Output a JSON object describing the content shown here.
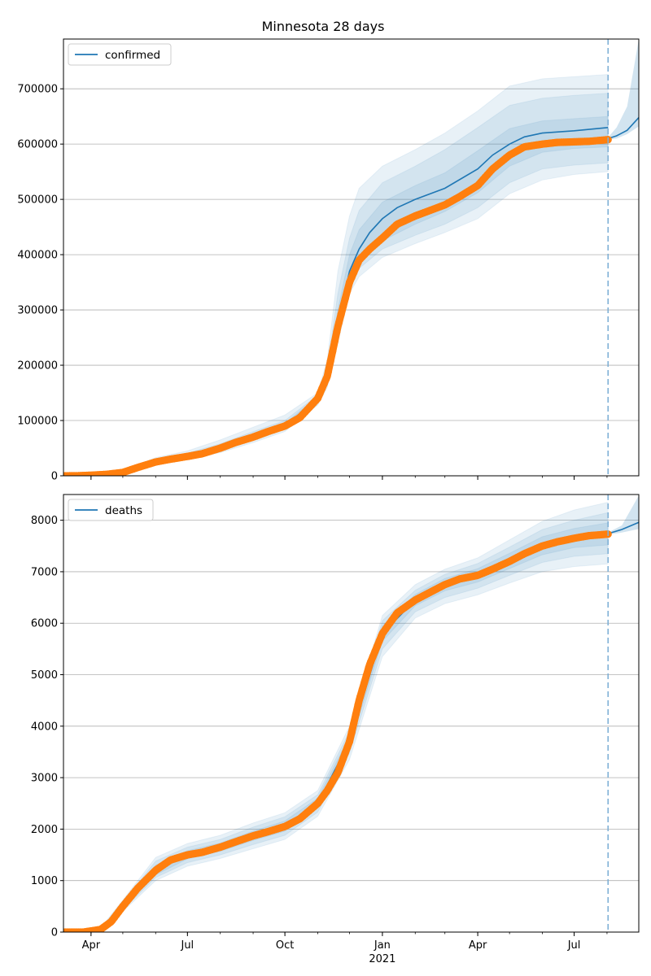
{
  "figure": {
    "title": "Minnesota 28 days"
  },
  "chart_data": [
    {
      "type": "line",
      "name": "confirmed-panel",
      "legend": "confirmed",
      "legend_position": "upper-left",
      "grid": "horizontal",
      "ylim": [
        0,
        790000
      ],
      "yticks": [
        0,
        100000,
        200000,
        300000,
        400000,
        500000,
        600000,
        700000
      ],
      "ytick_labels": [
        "0",
        "100000",
        "200000",
        "300000",
        "400000",
        "500000",
        "600000",
        "700000"
      ],
      "x_range": [
        "2020-03-06",
        "2021-08-31"
      ],
      "forecast_start": "2021-08-02",
      "observed": {
        "x": [
          "2020-03-06",
          "2020-03-20",
          "2020-04-01",
          "2020-04-15",
          "2020-05-01",
          "2020-05-15",
          "2020-06-01",
          "2020-06-15",
          "2020-07-01",
          "2020-07-15",
          "2020-08-01",
          "2020-08-15",
          "2020-09-01",
          "2020-09-15",
          "2020-10-01",
          "2020-10-15",
          "2020-11-01",
          "2020-11-10",
          "2020-11-20",
          "2020-12-01",
          "2020-12-10",
          "2020-12-20",
          "2021-01-01",
          "2021-01-15",
          "2021-02-01",
          "2021-02-15",
          "2021-03-01",
          "2021-03-15",
          "2021-04-01",
          "2021-04-15",
          "2021-05-01",
          "2021-05-15",
          "2021-06-01",
          "2021-06-15",
          "2021-07-01",
          "2021-07-15",
          "2021-08-02"
        ],
        "y": [
          0,
          200,
          1000,
          2500,
          6000,
          15000,
          25000,
          30000,
          35000,
          40000,
          50000,
          60000,
          70000,
          80000,
          90000,
          105000,
          140000,
          180000,
          270000,
          350000,
          390000,
          410000,
          430000,
          455000,
          470000,
          480000,
          490000,
          505000,
          525000,
          555000,
          580000,
          595000,
          600000,
          603000,
          604000,
          605000,
          608000
        ]
      },
      "model": {
        "x": [
          "2020-03-06",
          "2020-04-01",
          "2020-05-01",
          "2020-06-01",
          "2020-07-01",
          "2020-08-01",
          "2020-09-01",
          "2020-10-01",
          "2020-11-01",
          "2020-11-10",
          "2020-11-20",
          "2020-12-01",
          "2020-12-10",
          "2020-12-20",
          "2021-01-01",
          "2021-01-15",
          "2021-02-01",
          "2021-03-01",
          "2021-04-01",
          "2021-04-15",
          "2021-05-01",
          "2021-05-15",
          "2021-06-01",
          "2021-07-01",
          "2021-08-02"
        ],
        "y": [
          0,
          1000,
          6000,
          25000,
          35000,
          50000,
          70000,
          90000,
          140000,
          180000,
          275000,
          370000,
          410000,
          440000,
          465000,
          485000,
          500000,
          520000,
          555000,
          580000,
          600000,
          613000,
          620000,
          624000,
          630000
        ]
      },
      "forecast": {
        "x": [
          "2021-08-02",
          "2021-08-10",
          "2021-08-20",
          "2021-08-31"
        ],
        "y": [
          610000,
          615000,
          625000,
          648000
        ]
      },
      "bands": [
        {
          "level": "outer",
          "x": [
            "2020-03-06",
            "2020-04-01",
            "2020-05-01",
            "2020-06-01",
            "2020-07-01",
            "2020-08-01",
            "2020-09-01",
            "2020-10-01",
            "2020-11-01",
            "2020-11-10",
            "2020-11-20",
            "2020-12-01",
            "2020-12-10",
            "2021-01-01",
            "2021-02-01",
            "2021-03-01",
            "2021-04-01",
            "2021-05-01",
            "2021-06-01",
            "2021-07-01",
            "2021-08-02"
          ],
          "upper": [
            0,
            2000,
            9000,
            33000,
            45000,
            65000,
            88000,
            110000,
            150000,
            210000,
            370000,
            470000,
            520000,
            560000,
            590000,
            620000,
            660000,
            705000,
            718000,
            722000,
            726000
          ],
          "lower": [
            0,
            0,
            4000,
            20000,
            30000,
            42000,
            60000,
            80000,
            128000,
            160000,
            240000,
            330000,
            360000,
            395000,
            420000,
            440000,
            465000,
            510000,
            535000,
            545000,
            550000
          ]
        },
        {
          "level": "middle",
          "x": [
            "2020-03-06",
            "2020-04-01",
            "2020-05-01",
            "2020-06-01",
            "2020-07-01",
            "2020-08-01",
            "2020-09-01",
            "2020-10-01",
            "2020-11-01",
            "2020-11-10",
            "2020-11-20",
            "2020-12-01",
            "2020-12-10",
            "2021-01-01",
            "2021-02-01",
            "2021-03-01",
            "2021-04-01",
            "2021-05-01",
            "2021-06-01",
            "2021-07-01",
            "2021-08-02"
          ],
          "upper": [
            0,
            1500,
            8000,
            30000,
            41000,
            58000,
            80000,
            100000,
            146000,
            195000,
            330000,
            430000,
            480000,
            530000,
            560000,
            590000,
            630000,
            670000,
            683000,
            688000,
            692000
          ],
          "lower": [
            0,
            500,
            5000,
            22000,
            31000,
            45000,
            64000,
            84000,
            132000,
            168000,
            255000,
            345000,
            375000,
            410000,
            435000,
            455000,
            485000,
            530000,
            555000,
            562000,
            566000
          ]
        },
        {
          "level": "inner",
          "x": [
            "2020-03-06",
            "2020-04-01",
            "2020-05-01",
            "2020-06-01",
            "2020-07-01",
            "2020-08-01",
            "2020-09-01",
            "2020-10-01",
            "2020-11-01",
            "2020-11-10",
            "2020-11-20",
            "2020-12-01",
            "2020-12-10",
            "2021-01-01",
            "2021-02-01",
            "2021-03-01",
            "2021-04-01",
            "2021-05-01",
            "2021-06-01",
            "2021-07-01",
            "2021-08-02"
          ],
          "upper": [
            0,
            1200,
            7000,
            27000,
            38000,
            54000,
            75000,
            95000,
            143000,
            188000,
            300000,
            400000,
            445000,
            495000,
            525000,
            548000,
            588000,
            628000,
            642000,
            646000,
            650000
          ],
          "lower": [
            0,
            800,
            5500,
            23000,
            32000,
            47000,
            67000,
            87000,
            135000,
            173000,
            262000,
            355000,
            385000,
            425000,
            455000,
            478000,
            512000,
            560000,
            585000,
            592000,
            595000
          ]
        }
      ],
      "forecast_band": {
        "x": [
          "2021-08-02",
          "2021-08-10",
          "2021-08-20",
          "2021-08-31"
        ],
        "upper": [
          612000,
          630000,
          668000,
          790000
        ],
        "lower": [
          608000,
          610000,
          618000,
          632000
        ]
      },
      "xticks": [
        {
          "date": "2020-04-01",
          "label": "Apr"
        },
        {
          "date": "2020-07-01",
          "label": "Jul"
        },
        {
          "date": "2020-10-01",
          "label": "Oct"
        },
        {
          "date": "2021-01-01",
          "label": "Jan"
        },
        {
          "date": "2021-04-01",
          "label": "Apr"
        },
        {
          "date": "2021-07-01",
          "label": "Jul"
        }
      ],
      "show_xtick_labels": false
    },
    {
      "type": "line",
      "name": "deaths-panel",
      "legend": "deaths",
      "legend_position": "upper-left",
      "grid": "horizontal",
      "ylim": [
        0,
        8500
      ],
      "yticks": [
        0,
        1000,
        2000,
        3000,
        4000,
        5000,
        6000,
        7000,
        8000
      ],
      "ytick_labels": [
        "0",
        "1000",
        "2000",
        "3000",
        "4000",
        "5000",
        "6000",
        "7000",
        "8000"
      ],
      "x_range": [
        "2020-03-06",
        "2021-08-31"
      ],
      "forecast_start": "2021-08-02",
      "observed": {
        "x": [
          "2020-03-06",
          "2020-03-25",
          "2020-04-10",
          "2020-04-20",
          "2020-05-01",
          "2020-05-15",
          "2020-06-01",
          "2020-06-15",
          "2020-07-01",
          "2020-07-15",
          "2020-08-01",
          "2020-08-15",
          "2020-09-01",
          "2020-09-15",
          "2020-10-01",
          "2020-10-15",
          "2020-11-01",
          "2020-11-10",
          "2020-11-20",
          "2020-12-01",
          "2020-12-10",
          "2020-12-20",
          "2021-01-01",
          "2021-01-15",
          "2021-02-01",
          "2021-02-15",
          "2021-03-01",
          "2021-03-15",
          "2021-04-01",
          "2021-04-15",
          "2021-05-01",
          "2021-05-15",
          "2021-06-01",
          "2021-06-15",
          "2021-07-01",
          "2021-07-15",
          "2021-08-02"
        ],
        "y": [
          0,
          0,
          50,
          200,
          500,
          850,
          1200,
          1400,
          1500,
          1550,
          1650,
          1750,
          1870,
          1950,
          2050,
          2200,
          2500,
          2750,
          3100,
          3700,
          4500,
          5200,
          5800,
          6200,
          6450,
          6600,
          6750,
          6860,
          6930,
          7050,
          7200,
          7350,
          7500,
          7580,
          7650,
          7700,
          7730
        ]
      },
      "model": {
        "x": [
          "2020-03-06",
          "2020-04-10",
          "2020-05-01",
          "2020-06-01",
          "2020-07-01",
          "2020-08-01",
          "2020-09-01",
          "2020-10-01",
          "2020-11-01",
          "2020-12-01",
          "2021-01-01",
          "2021-02-01",
          "2021-03-01",
          "2021-04-01",
          "2021-05-01",
          "2021-06-01",
          "2021-07-01",
          "2021-08-02"
        ],
        "y": [
          0,
          50,
          500,
          1200,
          1500,
          1650,
          1870,
          2050,
          2500,
          3700,
          5800,
          6450,
          6750,
          6930,
          7200,
          7500,
          7650,
          7740
        ]
      },
      "forecast": {
        "x": [
          "2021-08-02",
          "2021-08-15",
          "2021-08-31"
        ],
        "y": [
          7740,
          7820,
          7960
        ]
      },
      "bands": [
        {
          "level": "outer",
          "x": [
            "2020-03-06",
            "2020-04-10",
            "2020-05-01",
            "2020-06-01",
            "2020-07-01",
            "2020-08-01",
            "2020-09-01",
            "2020-10-01",
            "2020-11-01",
            "2020-12-01",
            "2021-01-01",
            "2021-02-01",
            "2021-03-01",
            "2021-04-01",
            "2021-05-01",
            "2021-06-01",
            "2021-07-01",
            "2021-08-02"
          ],
          "upper": [
            0,
            80,
            620,
            1450,
            1720,
            1880,
            2120,
            2320,
            2750,
            4000,
            6150,
            6750,
            7050,
            7270,
            7620,
            7980,
            8200,
            8350
          ],
          "lower": [
            0,
            20,
            400,
            1000,
            1280,
            1430,
            1620,
            1800,
            2250,
            3350,
            5350,
            6100,
            6380,
            6550,
            6780,
            7000,
            7100,
            7150
          ]
        },
        {
          "level": "middle",
          "x": [
            "2020-03-06",
            "2020-04-10",
            "2020-05-01",
            "2020-06-01",
            "2020-07-01",
            "2020-08-01",
            "2020-09-01",
            "2020-10-01",
            "2020-11-01",
            "2020-12-01",
            "2021-01-01",
            "2021-02-01",
            "2021-03-01",
            "2021-04-01",
            "2021-05-01",
            "2021-06-01",
            "2021-07-01",
            "2021-08-02"
          ],
          "upper": [
            0,
            70,
            580,
            1380,
            1650,
            1800,
            2040,
            2240,
            2670,
            3900,
            6050,
            6640,
            6950,
            7160,
            7480,
            7820,
            8000,
            8150
          ],
          "lower": [
            0,
            30,
            430,
            1060,
            1350,
            1500,
            1700,
            1880,
            2330,
            3480,
            5500,
            6220,
            6500,
            6680,
            6930,
            7180,
            7300,
            7350
          ]
        },
        {
          "level": "inner",
          "x": [
            "2020-03-06",
            "2020-04-10",
            "2020-05-01",
            "2020-06-01",
            "2020-07-01",
            "2020-08-01",
            "2020-09-01",
            "2020-10-01",
            "2020-11-01",
            "2020-12-01",
            "2021-01-01",
            "2021-02-01",
            "2021-03-01",
            "2021-04-01",
            "2021-05-01",
            "2021-06-01",
            "2021-07-01",
            "2021-08-02"
          ],
          "upper": [
            0,
            60,
            540,
            1300,
            1580,
            1730,
            1960,
            2160,
            2600,
            3800,
            5950,
            6560,
            6870,
            7060,
            7360,
            7680,
            7840,
            7950
          ],
          "lower": [
            0,
            40,
            460,
            1110,
            1420,
            1570,
            1780,
            1960,
            2410,
            3600,
            5650,
            6340,
            6630,
            6800,
            7060,
            7330,
            7470,
            7520
          ]
        }
      ],
      "forecast_band": {
        "x": [
          "2021-08-02",
          "2021-08-15",
          "2021-08-31"
        ],
        "upper": [
          7760,
          7900,
          8480
        ],
        "lower": [
          7720,
          7760,
          7830
        ]
      },
      "xticks": [
        {
          "date": "2020-04-01",
          "label": "Apr"
        },
        {
          "date": "2020-07-01",
          "label": "Jul"
        },
        {
          "date": "2020-10-01",
          "label": "Oct"
        },
        {
          "date": "2021-01-01",
          "label": "Jan"
        },
        {
          "date": "2021-04-01",
          "label": "Apr"
        },
        {
          "date": "2021-07-01",
          "label": "Jul"
        }
      ],
      "year_label": "2021",
      "show_xtick_labels": true
    }
  ],
  "colors": {
    "line": "#1f77b4",
    "observed": "#ff7f0e",
    "band": "#1f77b4",
    "grid": "#b0b0b0",
    "forecast_marker": "#7fb0d6"
  }
}
